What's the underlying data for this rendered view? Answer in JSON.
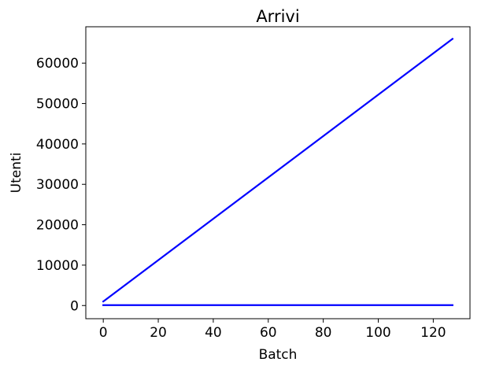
{
  "chart_data": {
    "type": "line",
    "title": "Arrivi",
    "xlabel": "Batch",
    "ylabel": "Utenti",
    "xlim": [
      -6.35,
      133.35
    ],
    "ylim": [
      -3260,
      69000
    ],
    "x_ticks": [
      0,
      20,
      40,
      60,
      80,
      100,
      120
    ],
    "y_ticks": [
      0,
      10000,
      20000,
      30000,
      40000,
      50000,
      60000
    ],
    "grid": false,
    "legend": false,
    "series": [
      {
        "color": "#0000ff",
        "points": [
          [
            0,
            1000
          ],
          [
            127,
            66000
          ]
        ]
      },
      {
        "color": "#0000ff",
        "points": [
          [
            0,
            100
          ],
          [
            127,
            100
          ]
        ]
      }
    ]
  }
}
